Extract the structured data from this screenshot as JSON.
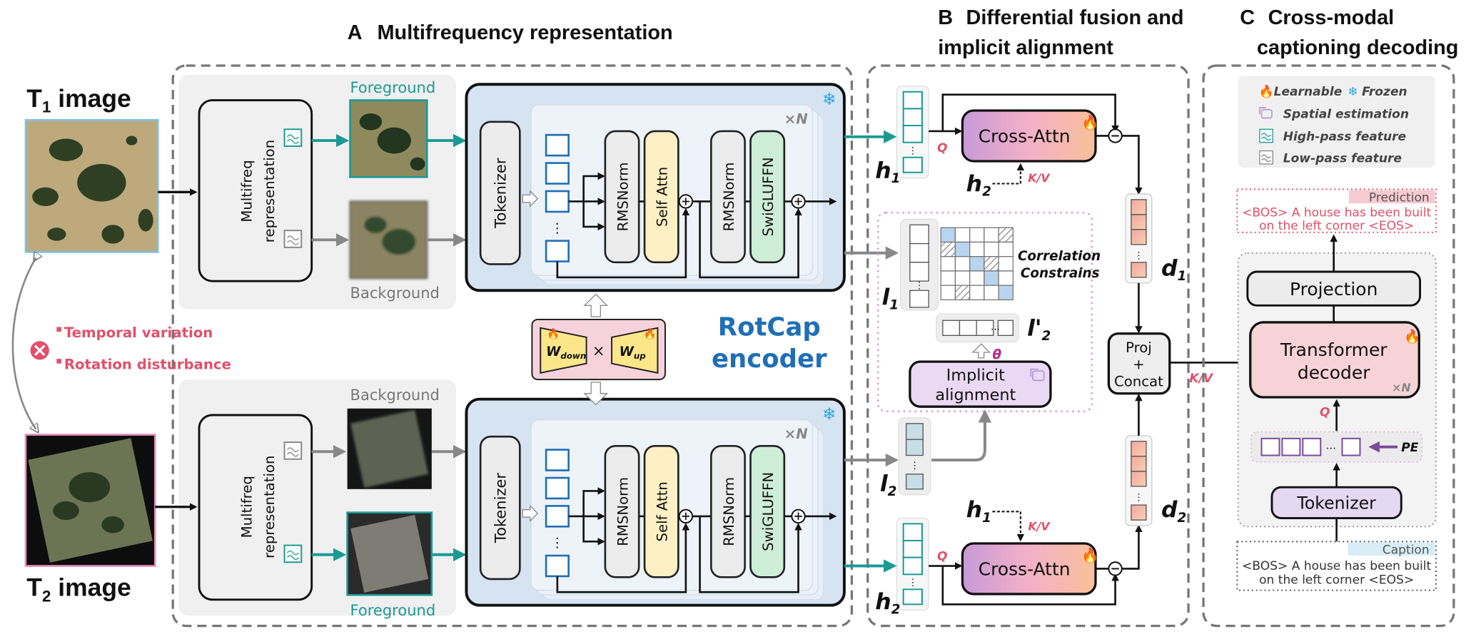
{
  "sections": {
    "a": {
      "letter": "A",
      "title": "Multifrequency representation"
    },
    "b": {
      "letter": "B",
      "title_line1": "Differential fusion and",
      "title_line2": "implicit alignment"
    },
    "c": {
      "letter": "C",
      "title_line1": "Cross-modal",
      "title_line2": "captioning decoding"
    }
  },
  "inputs": {
    "t1": {
      "symbol": "T",
      "sub": "1",
      "label": " image"
    },
    "t2": {
      "symbol": "T",
      "sub": "2",
      "label": " image"
    }
  },
  "challenges": {
    "items": [
      "Temporal variation",
      "Rotation disturbance"
    ],
    "icon": "x-circle-icon"
  },
  "multifreq": {
    "label_line1": "Multifreq",
    "label_line2": "representation",
    "foreground": "Foreground",
    "background": "Background"
  },
  "encoder": {
    "tokenizer": "Tokenizer",
    "rmsnorm": "RMSNorm",
    "self_attn": "Self Attn",
    "swiglu": "SwiGLUFFN",
    "repeat": "×N",
    "name_line1": "RotCap",
    "name_line2": "encoder",
    "status_icon": "snowflake-icon"
  },
  "lora": {
    "w": "W",
    "down": "down",
    "up": "up",
    "times": "×"
  },
  "fusion": {
    "cross_attn": "Cross-Attn",
    "q": "Q",
    "kv": "K/V",
    "h": "h",
    "l": "l",
    "d": "d",
    "sub1": "1",
    "sub2": "2",
    "prime": "'",
    "correlation_line1": "Correlation",
    "correlation_line2": "Constrains",
    "theta": "θ",
    "implicit_line1": "Implicit",
    "implicit_line2": "alignment",
    "proj_line1": "Proj",
    "proj_plus": "+",
    "proj_line2": "Concat"
  },
  "legend": [
    {
      "icon": "flame-icon",
      "label": "Learnable"
    },
    {
      "icon": "snowflake-icon",
      "label": "Frozen"
    },
    {
      "icon": "spatial-estimation-icon",
      "label": "Spatial estimation"
    },
    {
      "icon": "high-pass-icon",
      "label": "High-pass feature"
    },
    {
      "icon": "low-pass-icon",
      "label": "Low-pass feature"
    }
  ],
  "decoder": {
    "prediction_tag": "Prediction",
    "prediction_line1": "<BOS> A house has been built",
    "prediction_line2": "on the left corner <EOS>",
    "projection": "Projection",
    "transformer_line1": "Transformer",
    "transformer_line2": "decoder",
    "repeat": "×N",
    "q": "Q",
    "kv": "K/V",
    "pe": "PE",
    "tokenizer": "Tokenizer",
    "caption_tag": "Caption",
    "caption_line1": "<BOS> A house has been built",
    "caption_line2": "on the left corner <EOS>"
  },
  "colors": {
    "teal": "#1a9a94",
    "accent_red": "#e0506a",
    "encoder_blue": "#1f6fb5",
    "encoder_fill": "#d6e4f2",
    "frozen": "#29a8e0",
    "learnable": "#f05a1e"
  }
}
